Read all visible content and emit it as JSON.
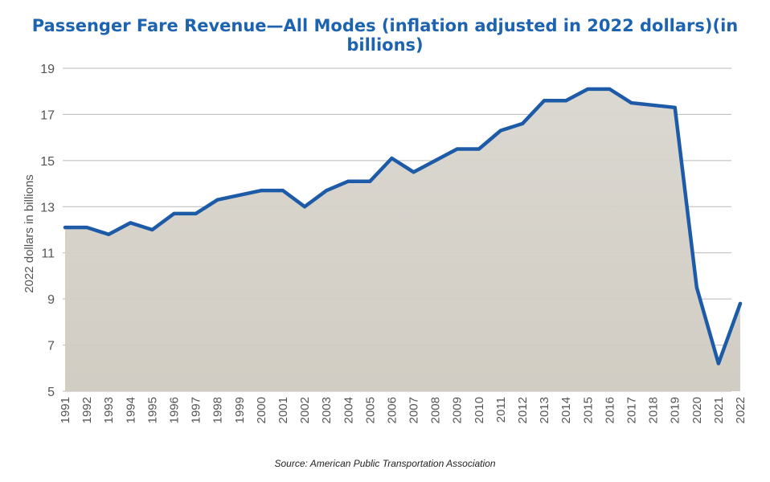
{
  "title": "Passenger Fare Revenue—All Modes (inflation adjusted in 2022 dollars)(in billions)",
  "source": "Source: American Public Transportation Association",
  "colors": {
    "line": "#1d5ba8",
    "title": "#1d63b0",
    "grid": "#b9b9b9",
    "fill_top": "#d9d6cf",
    "fill_bottom": "#cfcac0"
  },
  "chart_data": {
    "type": "area",
    "title": "Passenger Fare Revenue—All Modes (inflation adjusted in 2022 dollars)(in billions)",
    "xlabel": "",
    "ylabel": "2022 dollars in billions",
    "ylim": [
      5,
      19
    ],
    "yticks": [
      5,
      7,
      9,
      11,
      13,
      15,
      17,
      19
    ],
    "grid": true,
    "x": [
      "1991",
      "1992",
      "1993",
      "1994",
      "1995",
      "1996",
      "1997",
      "1998",
      "1999",
      "2000",
      "2001",
      "2002",
      "2003",
      "2004",
      "2005",
      "2006",
      "2007",
      "2008",
      "2009",
      "2010",
      "2011",
      "2012",
      "2013",
      "2014",
      "2015",
      "2016",
      "2017",
      "2018",
      "2019",
      "2020",
      "2021",
      "2022"
    ],
    "series": [
      {
        "values": [
          12.1,
          12.1,
          11.8,
          12.3,
          12.0,
          12.7,
          12.7,
          13.3,
          13.5,
          13.7,
          13.7,
          13.0,
          13.7,
          14.1,
          14.1,
          15.1,
          14.5,
          15.0,
          15.5,
          15.5,
          16.3,
          16.6,
          17.6,
          17.6,
          18.1,
          18.1,
          17.5,
          17.4,
          17.3,
          9.5,
          6.2,
          8.8
        ]
      }
    ]
  }
}
